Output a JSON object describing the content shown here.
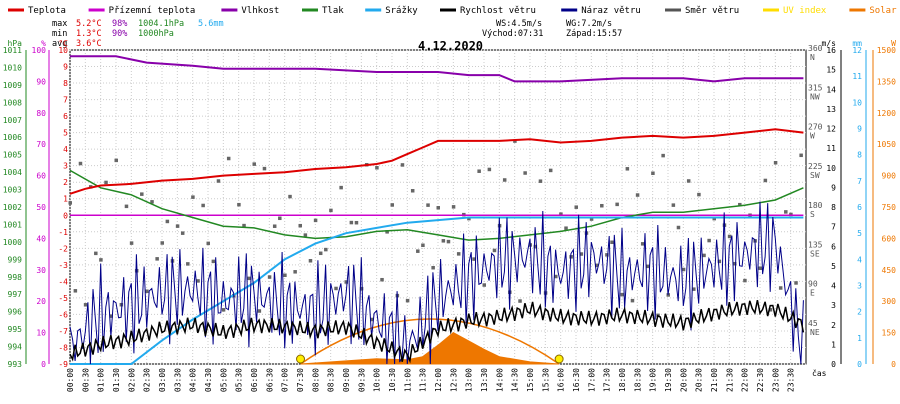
{
  "chart_data": {
    "type": "line",
    "title": "4.12.2020",
    "x_unit_label": "čas",
    "x_ticks": [
      "00:00",
      "00:30",
      "01:00",
      "01:30",
      "02:00",
      "02:30",
      "03:00",
      "03:30",
      "04:00",
      "04:30",
      "05:00",
      "05:30",
      "06:00",
      "06:30",
      "07:00",
      "07:30",
      "08:00",
      "08:30",
      "09:00",
      "09:30",
      "10:00",
      "10:30",
      "11:00",
      "11:30",
      "12:00",
      "12:30",
      "13:00",
      "13:30",
      "14:00",
      "14:30",
      "15:00",
      "15:30",
      "16:00",
      "16:30",
      "17:00",
      "17:30",
      "18:00",
      "18:30",
      "19:00",
      "19:30",
      "20:00",
      "20:30",
      "21:00",
      "21:30",
      "22:00",
      "22:30",
      "23:00",
      "23:30"
    ],
    "legend": [
      {
        "name": "Teplota",
        "color": "#dd0000"
      },
      {
        "name": "Přízemní teplota",
        "color": "#cc00cc"
      },
      {
        "name": "Vlhkost",
        "color": "#8800aa"
      },
      {
        "name": "Tlak",
        "color": "#228822"
      },
      {
        "name": "Srážky",
        "color": "#22aaee"
      },
      {
        "name": "Rychlost větru",
        "color": "#000000"
      },
      {
        "name": "Náraz větru",
        "color": "#000088"
      },
      {
        "name": "Směr větru",
        "color": "#555555"
      },
      {
        "name": "UV index",
        "color": "#ffdd00"
      },
      {
        "name": "Solar",
        "color": "#ee7700"
      }
    ],
    "stats": {
      "max": {
        "label": "max",
        "temp": "5.2°C",
        "hum": "98%",
        "press": "1004.1hPa",
        "rain": "5.6mm"
      },
      "min": {
        "label": "min",
        "temp": "1.3°C",
        "hum": "90%",
        "press": "1000hPa"
      },
      "avg": {
        "label": "avg",
        "temp": "3.6°C"
      }
    },
    "wind_info": {
      "ws": "WS:4.5m/s",
      "wg": "WG:7.2m/s",
      "sunrise": "Východ:07:31",
      "sunset": "Západ:15:57"
    },
    "axes": {
      "hPa": {
        "label": "hPa",
        "color": "#228822",
        "range": [
          993,
          1011
        ],
        "ticks": [
          "1011",
          "1010",
          "1009",
          "1008",
          "1007",
          "1006",
          "1005",
          "1004",
          "1003",
          "1002",
          "1001",
          "1000",
          "999",
          "998",
          "997",
          "996",
          "995",
          "994",
          "993"
        ]
      },
      "pct": {
        "label": "%",
        "color": "#cc00cc",
        "range": [
          0,
          100
        ],
        "ticks": [
          "100",
          "90",
          "80",
          "70",
          "60",
          "50",
          "40",
          "30",
          "20",
          "10",
          "0"
        ]
      },
      "temp": {
        "label": "°C",
        "color": "#dd0000",
        "range": [
          -9,
          10
        ],
        "ticks": [
          "10",
          "9",
          "8",
          "7",
          "6",
          "5",
          "4",
          "3",
          "2",
          "1",
          "0",
          "-1",
          "-2",
          "-3",
          "-4",
          "-5",
          "-6",
          "-7",
          "-8",
          "-9"
        ]
      },
      "ms": {
        "label": "m/s",
        "color": "#000000",
        "range": [
          0,
          16
        ],
        "ticks": [
          "16",
          "15",
          "14",
          "13",
          "12",
          "11",
          "10",
          "9",
          "8",
          "7",
          "6",
          "5",
          "4",
          "3",
          "2",
          "1",
          "0"
        ]
      },
      "dir": {
        "ticks": [
          {
            "deg": "360",
            "dir": "N"
          },
          {
            "deg": "315",
            "dir": "NW"
          },
          {
            "deg": "270",
            "dir": "W"
          },
          {
            "deg": "225",
            "dir": "SW"
          },
          {
            "deg": "180",
            "dir": "S"
          },
          {
            "deg": "135",
            "dir": "SE"
          },
          {
            "deg": "90",
            "dir": "E"
          },
          {
            "deg": "45",
            "dir": "NE"
          }
        ]
      },
      "mm": {
        "label": "mm",
        "color": "#22aaee",
        "range": [
          0,
          12
        ],
        "ticks": [
          "12",
          "11",
          "10",
          "9",
          "8",
          "7",
          "6",
          "5",
          "4",
          "3",
          "2",
          "1",
          "0"
        ]
      },
      "solar": {
        "label": "W",
        "color": "#ee7700",
        "range": [
          0,
          1500
        ],
        "ticks": [
          "1500",
          "1350",
          "1200",
          "1050",
          "900",
          "750",
          "600",
          "450",
          "300",
          "150",
          "0"
        ]
      }
    },
    "series": [
      {
        "name": "Teplota",
        "unit": "°C",
        "x": [
          "00:00",
          "00:30",
          "01:00",
          "02:00",
          "03:00",
          "04:00",
          "05:00",
          "06:00",
          "07:00",
          "08:00",
          "09:00",
          "10:00",
          "10:30",
          "11:00",
          "11:30",
          "12:00",
          "13:00",
          "14:00",
          "15:00",
          "16:00",
          "17:00",
          "18:00",
          "19:00",
          "20:00",
          "21:00",
          "22:00",
          "23:00",
          "23:55"
        ],
        "values": [
          1.3,
          1.6,
          1.8,
          1.9,
          2.1,
          2.2,
          2.4,
          2.5,
          2.6,
          2.8,
          2.9,
          3.1,
          3.3,
          3.7,
          4.1,
          4.5,
          4.5,
          4.5,
          4.6,
          4.4,
          4.5,
          4.7,
          4.8,
          4.7,
          4.8,
          5.0,
          5.2,
          5.0
        ]
      },
      {
        "name": "Přízemní teplota",
        "unit": "°C",
        "x": [
          "00:00",
          "23:55"
        ],
        "values": [
          0,
          0
        ]
      },
      {
        "name": "Vlhkost",
        "unit": "%",
        "x": [
          "00:00",
          "01:30",
          "02:30",
          "04:00",
          "05:00",
          "06:00",
          "08:00",
          "10:00",
          "12:00",
          "13:00",
          "14:00",
          "14:30",
          "16:00",
          "18:00",
          "20:00",
          "21:00",
          "22:00",
          "23:55"
        ],
        "values": [
          98,
          98,
          96,
          95,
          94,
          94,
          94,
          93,
          93,
          92,
          92,
          90,
          90,
          91,
          91,
          90,
          91,
          91
        ]
      },
      {
        "name": "Tlak",
        "unit": "hPa",
        "x": [
          "00:00",
          "01:00",
          "02:00",
          "03:00",
          "04:00",
          "05:00",
          "06:00",
          "07:00",
          "08:00",
          "09:00",
          "10:00",
          "11:00",
          "12:00",
          "13:00",
          "14:00",
          "15:00",
          "16:00",
          "17:00",
          "18:00",
          "19:00",
          "20:00",
          "21:00",
          "22:00",
          "23:00",
          "23:55"
        ],
        "values": [
          1004.1,
          1003.1,
          1002.7,
          1001.9,
          1001.4,
          1000.9,
          1000.8,
          1000.4,
          1000.2,
          1000.3,
          1000.6,
          1000.7,
          1000.4,
          1000.1,
          1000.2,
          1000.4,
          1000.6,
          1000.9,
          1001.4,
          1001.7,
          1001.7,
          1001.9,
          1002.1,
          1002.4,
          1003.1
        ]
      },
      {
        "name": "Srážky",
        "unit": "mm",
        "x": [
          "00:00",
          "02:00",
          "03:00",
          "04:00",
          "05:00",
          "06:00",
          "07:00",
          "08:00",
          "09:00",
          "10:00",
          "11:00",
          "12:00",
          "13:00",
          "13:30",
          "14:00",
          "16:00",
          "20:00",
          "23:55"
        ],
        "values": [
          0,
          0,
          0.9,
          1.7,
          2.4,
          3.1,
          4.0,
          4.6,
          5.0,
          5.2,
          5.4,
          5.5,
          5.6,
          5.6,
          5.6,
          5.6,
          5.6,
          5.6
        ]
      },
      {
        "name": "Rychlost větru",
        "unit": "m/s",
        "x": [
          "00:00",
          "01:00",
          "02:00",
          "03:00",
          "04:00",
          "05:00",
          "06:00",
          "07:00",
          "08:00",
          "09:00",
          "10:00",
          "11:00",
          "12:00",
          "13:00",
          "14:00",
          "15:00",
          "16:00",
          "17:00",
          "18:00",
          "19:00",
          "20:00",
          "21:00",
          "22:00",
          "23:00",
          "23:55"
        ],
        "values": [
          0.5,
          1.0,
          1.3,
          1.8,
          2.0,
          1.6,
          2.0,
          1.9,
          1.7,
          1.9,
          1.1,
          0.4,
          1.8,
          2.2,
          2.4,
          2.8,
          2.4,
          2.3,
          2.5,
          2.3,
          2.1,
          2.6,
          2.9,
          2.8,
          2.0
        ]
      },
      {
        "name": "Náraz větru",
        "unit": "m/s",
        "x": [
          "00:00",
          "01:00",
          "02:00",
          "03:00",
          "04:00",
          "05:00",
          "06:00",
          "07:00",
          "08:00",
          "09:00",
          "10:00",
          "11:00",
          "12:00",
          "13:00",
          "14:00",
          "15:00",
          "16:00",
          "17:00",
          "18:00",
          "19:00",
          "20:00",
          "21:00",
          "22:00",
          "23:00",
          "23:55"
        ],
        "values": [
          0.8,
          2.5,
          3.0,
          3.6,
          3.8,
          3.2,
          3.5,
          3.0,
          2.7,
          3.6,
          2.2,
          0.8,
          3.3,
          4.4,
          5.2,
          5.5,
          4.6,
          5.4,
          4.5,
          4.8,
          4.2,
          5.0,
          5.6,
          6.2,
          0.6
        ]
      },
      {
        "name": "Směr větru",
        "unit": "°",
        "x": [
          "00:00",
          "02:00",
          "04:00",
          "06:00",
          "08:00",
          "10:00",
          "12:00",
          "14:00",
          "16:00",
          "18:00",
          "20:00",
          "22:00",
          "23:55"
        ],
        "values": [
          150,
          140,
          145,
          150,
          140,
          145,
          150,
          165,
          150,
          145,
          150,
          140,
          155
        ]
      },
      {
        "name": "Solar",
        "unit": "W",
        "x": [
          "07:31",
          "09:00",
          "10:00",
          "11:00",
          "11:30",
          "12:00",
          "12:30",
          "13:00",
          "13:30",
          "14:00",
          "15:00",
          "15:57"
        ],
        "values": [
          0,
          15,
          25,
          20,
          35,
          90,
          150,
          110,
          70,
          35,
          10,
          0
        ]
      }
    ]
  }
}
